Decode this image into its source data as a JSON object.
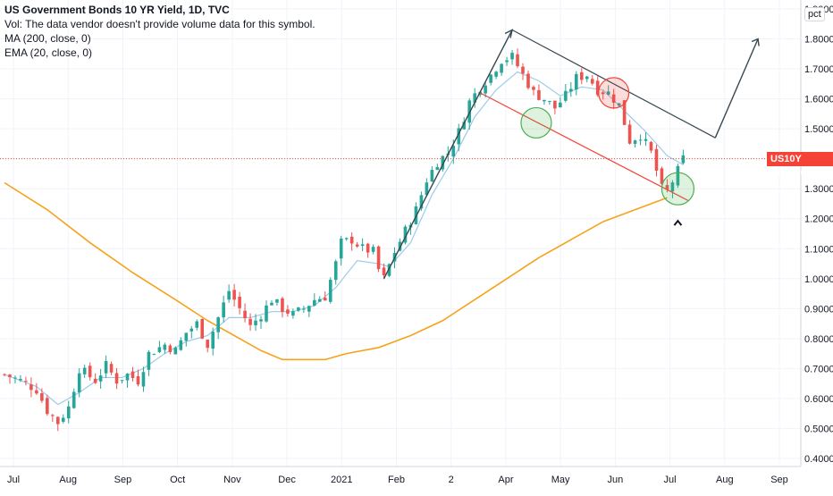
{
  "header": {
    "title": "US Government Bonds 10 YR Yield, 1D, TVC",
    "vol_note": "Vol: The data vendor doesn't provide volume data for this symbol.",
    "ma_label": "MA (200, close, 0)",
    "ema_label": "EMA (20, close, 0)"
  },
  "scale_button": "pct",
  "price_badge": {
    "symbol": "US10Y",
    "value": "1.4000"
  },
  "colors": {
    "up": "#26a69a",
    "down": "#ef5350",
    "ma": "#f7a21b",
    "ema": "#9ccbea",
    "drawing": "#37474f",
    "channel_low": "#f44336",
    "price_line": "#f44336",
    "circle_green": "#4caf50",
    "circle_red": "#f44336"
  },
  "chart_data": {
    "type": "candlestick",
    "y_axis": {
      "min": 0.4,
      "max": 1.9,
      "position": "right",
      "ticks": [
        "0.4000",
        "0.5000",
        "0.6000",
        "0.7000",
        "0.8000",
        "0.9000",
        "1.0000",
        "1.1000",
        "1.2000",
        "1.3000",
        "1.4000",
        "1.5000",
        "1.6000",
        "1.7000",
        "1.8000",
        "1.9000"
      ]
    },
    "x_axis": {
      "labels": [
        "Jul",
        "Aug",
        "Sep",
        "Oct",
        "Nov",
        "Dec",
        "2021",
        "Feb",
        "2",
        "Apr",
        "May",
        "Jun",
        "Jul",
        "Aug",
        "Sep"
      ]
    },
    "grid": true,
    "current_value": 1.4,
    "close_path": [
      [
        0,
        0.68
      ],
      [
        3,
        0.66
      ],
      [
        6,
        0.63
      ],
      [
        8,
        0.56
      ],
      [
        10,
        0.52
      ],
      [
        12,
        0.57
      ],
      [
        14,
        0.7
      ],
      [
        17,
        0.66
      ],
      [
        19,
        0.71
      ],
      [
        21,
        0.66
      ],
      [
        23,
        0.68
      ],
      [
        25,
        0.66
      ],
      [
        27,
        0.75
      ],
      [
        30,
        0.78
      ],
      [
        32,
        0.76
      ],
      [
        34,
        0.82
      ],
      [
        36,
        0.85
      ],
      [
        38,
        0.78
      ],
      [
        40,
        0.87
      ],
      [
        42,
        0.96
      ],
      [
        44,
        0.9
      ],
      [
        46,
        0.84
      ],
      [
        48,
        0.88
      ],
      [
        50,
        0.93
      ],
      [
        52,
        0.9
      ],
      [
        54,
        0.88
      ],
      [
        56,
        0.9
      ],
      [
        58,
        0.93
      ],
      [
        60,
        0.94
      ],
      [
        62,
        1.05
      ],
      [
        63,
        1.12
      ],
      [
        65,
        1.13
      ],
      [
        67,
        1.1
      ],
      [
        69,
        1.09
      ],
      [
        70,
        1.03
      ],
      [
        71,
        1.0
      ],
      [
        73,
        1.09
      ],
      [
        75,
        1.16
      ],
      [
        77,
        1.23
      ],
      [
        79,
        1.33
      ],
      [
        81,
        1.39
      ],
      [
        83,
        1.42
      ],
      [
        85,
        1.49
      ],
      [
        87,
        1.59
      ],
      [
        89,
        1.64
      ],
      [
        91,
        1.68
      ],
      [
        93,
        1.73
      ],
      [
        95,
        1.74
      ],
      [
        97,
        1.68
      ],
      [
        99,
        1.62
      ],
      [
        101,
        1.6
      ],
      [
        103,
        1.57
      ],
      [
        105,
        1.61
      ],
      [
        107,
        1.67
      ],
      [
        109,
        1.68
      ],
      [
        111,
        1.63
      ],
      [
        113,
        1.62
      ],
      [
        115,
        1.58
      ],
      [
        116,
        1.52
      ],
      [
        117,
        1.46
      ],
      [
        119,
        1.48
      ],
      [
        121,
        1.42
      ],
      [
        123,
        1.3
      ],
      [
        124,
        1.29
      ],
      [
        126,
        1.36
      ],
      [
        127,
        1.4
      ]
    ],
    "ema20_path": [
      [
        0,
        0.68
      ],
      [
        6,
        0.64
      ],
      [
        10,
        0.58
      ],
      [
        14,
        0.62
      ],
      [
        18,
        0.67
      ],
      [
        22,
        0.67
      ],
      [
        26,
        0.7
      ],
      [
        30,
        0.75
      ],
      [
        34,
        0.79
      ],
      [
        38,
        0.81
      ],
      [
        42,
        0.87
      ],
      [
        46,
        0.87
      ],
      [
        50,
        0.89
      ],
      [
        54,
        0.89
      ],
      [
        58,
        0.91
      ],
      [
        62,
        0.97
      ],
      [
        66,
        1.06
      ],
      [
        70,
        1.05
      ],
      [
        72,
        1.04
      ],
      [
        76,
        1.12
      ],
      [
        80,
        1.28
      ],
      [
        84,
        1.4
      ],
      [
        88,
        1.54
      ],
      [
        92,
        1.63
      ],
      [
        96,
        1.69
      ],
      [
        100,
        1.66
      ],
      [
        104,
        1.61
      ],
      [
        108,
        1.64
      ],
      [
        112,
        1.63
      ],
      [
        116,
        1.56
      ],
      [
        120,
        1.49
      ],
      [
        124,
        1.41
      ],
      [
        127,
        1.38
      ]
    ],
    "ma200_path": [
      [
        0,
        1.32
      ],
      [
        8,
        1.23
      ],
      [
        16,
        1.12
      ],
      [
        24,
        1.02
      ],
      [
        32,
        0.93
      ],
      [
        38,
        0.86
      ],
      [
        44,
        0.8
      ],
      [
        48,
        0.76
      ],
      [
        52,
        0.73
      ],
      [
        56,
        0.73
      ],
      [
        60,
        0.73
      ],
      [
        64,
        0.75
      ],
      [
        70,
        0.77
      ],
      [
        76,
        0.81
      ],
      [
        82,
        0.86
      ],
      [
        88,
        0.93
      ],
      [
        94,
        1.0
      ],
      [
        100,
        1.07
      ],
      [
        106,
        1.13
      ],
      [
        112,
        1.19
      ],
      [
        118,
        1.23
      ],
      [
        124,
        1.27
      ]
    ],
    "x_slots": 146
  }
}
